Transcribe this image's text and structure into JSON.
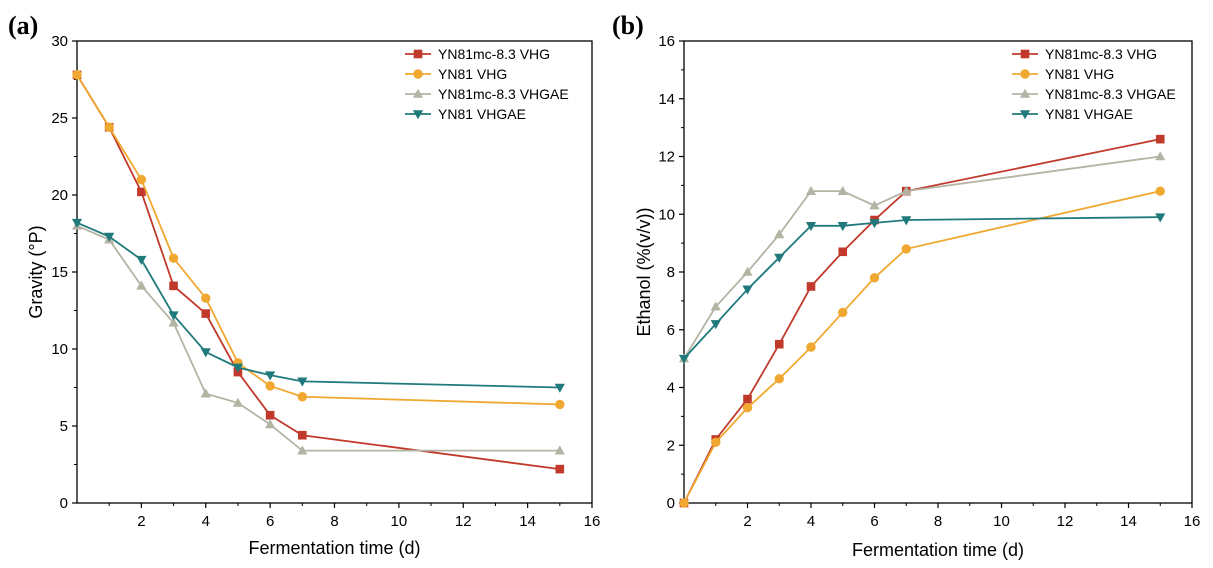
{
  "series_styles": [
    {
      "name": "YN81mc-8.3 VHG",
      "color": "#c0392b",
      "marker": "square"
    },
    {
      "name": "YN81 VHG",
      "color": "#f0a830",
      "marker": "circle"
    },
    {
      "name": "YN81mc-8.3 VHGAE",
      "color": "#b4b4a4",
      "marker": "triangle-up"
    },
    {
      "name": "YN81 VHGAE",
      "color": "#207a7c",
      "marker": "triangle-down"
    }
  ],
  "chart_data": [
    {
      "panel": "(a)",
      "type": "line",
      "xlabel": "Fermentation time (d)",
      "ylabel": "Gravity (°P)",
      "xlim": [
        0,
        16
      ],
      "ylim": [
        0,
        30
      ],
      "xticks": [
        2,
        4,
        6,
        8,
        10,
        12,
        14,
        16
      ],
      "yticks": [
        0,
        5,
        10,
        15,
        20,
        25,
        30
      ],
      "legend_position": "top-right",
      "series": [
        {
          "name": "YN81mc-8.3 VHG",
          "x": [
            0,
            1,
            2,
            3,
            4,
            5,
            6,
            7,
            15
          ],
          "y": [
            27.8,
            24.4,
            20.2,
            14.1,
            12.3,
            8.5,
            5.7,
            4.4,
            2.2
          ]
        },
        {
          "name": "YN81 VHG",
          "x": [
            0,
            1,
            2,
            3,
            4,
            5,
            6,
            7,
            15
          ],
          "y": [
            27.8,
            24.4,
            21.0,
            15.9,
            13.3,
            9.1,
            7.6,
            6.9,
            6.4
          ]
        },
        {
          "name": "YN81mc-8.3 VHGAE",
          "x": [
            0,
            1,
            2,
            3,
            4,
            5,
            6,
            7,
            15
          ],
          "y": [
            18.0,
            17.1,
            14.1,
            11.7,
            7.1,
            6.5,
            5.1,
            3.4,
            3.4
          ]
        },
        {
          "name": "YN81 VHGAE",
          "x": [
            0,
            1,
            2,
            3,
            4,
            5,
            6,
            7,
            15
          ],
          "y": [
            18.2,
            17.3,
            15.8,
            12.2,
            9.8,
            8.8,
            8.3,
            7.9,
            7.5
          ]
        }
      ]
    },
    {
      "panel": "(b)",
      "type": "line",
      "xlabel": "Fermentation time (d)",
      "ylabel": "Ethanol (%(v/v))",
      "xlim": [
        0,
        16
      ],
      "ylim": [
        0,
        16
      ],
      "xticks": [
        2,
        4,
        6,
        8,
        10,
        12,
        14,
        16
      ],
      "yticks": [
        0,
        2,
        4,
        6,
        8,
        10,
        12,
        14,
        16
      ],
      "legend_position": "top-right",
      "series": [
        {
          "name": "YN81mc-8.3 VHG",
          "x": [
            0,
            1,
            2,
            3,
            4,
            5,
            6,
            7,
            15
          ],
          "y": [
            0,
            2.2,
            3.6,
            5.5,
            7.5,
            8.7,
            9.8,
            10.8,
            12.6
          ]
        },
        {
          "name": "YN81 VHG",
          "x": [
            0,
            1,
            2,
            3,
            4,
            5,
            6,
            7,
            15
          ],
          "y": [
            0,
            2.1,
            3.3,
            4.3,
            5.4,
            6.6,
            7.8,
            8.8,
            10.8
          ]
        },
        {
          "name": "YN81mc-8.3 VHGAE",
          "x": [
            0,
            1,
            2,
            3,
            4,
            5,
            6,
            7,
            15
          ],
          "y": [
            5.0,
            6.8,
            8.0,
            9.3,
            10.8,
            10.8,
            10.3,
            10.8,
            12.0
          ]
        },
        {
          "name": "YN81 VHGAE",
          "x": [
            0,
            1,
            2,
            3,
            4,
            5,
            6,
            7,
            15
          ],
          "y": [
            5.0,
            6.2,
            7.4,
            8.5,
            9.6,
            9.6,
            9.7,
            9.8,
            9.9
          ]
        }
      ]
    }
  ]
}
